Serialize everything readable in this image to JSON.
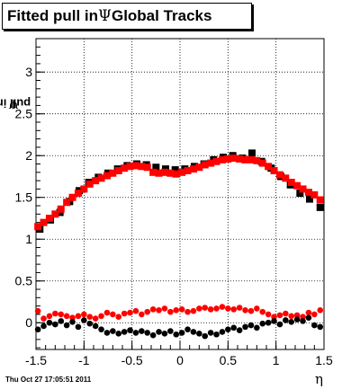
{
  "title": {
    "prefix": "Fitted pull in",
    "symbol": "Ψ",
    "suffix": "Global Tracks"
  },
  "footer_timestamp": "Thu Oct 27 17:05:51 2011",
  "chart_data": {
    "type": "scatter",
    "xlabel": "η",
    "ylabel": {
      "prefix": "pull in",
      "symbol": "Ψ"
    },
    "xlim": [
      -1.5,
      1.5
    ],
    "ylim": [
      -0.32,
      3.4
    ],
    "grid": true,
    "x_ticks": [
      "-1.5",
      "-1",
      "-0.5",
      "0",
      "0.5",
      "1",
      "1.5"
    ],
    "x_tick_values": [
      -1.5,
      -1,
      -0.5,
      0,
      0.5,
      1,
      1.5
    ],
    "y_ticks": [
      "0",
      "0.5",
      "1",
      "1.5",
      "2",
      "2.5",
      "3"
    ],
    "y_tick_values": [
      0,
      0.5,
      1,
      1.5,
      2,
      2.5,
      3
    ],
    "series_colors": [
      "#000000",
      "#ff0000",
      "#ff0000",
      "#000000"
    ],
    "series": [
      {
        "marker": "square",
        "color": "#000000",
        "x": [
          -1.46,
          -1.35,
          -1.25,
          -1.15,
          -1.05,
          -0.95,
          -0.85,
          -0.75,
          -0.65,
          -0.55,
          -0.45,
          -0.35,
          -0.25,
          -0.15,
          -0.05,
          0.05,
          0.15,
          0.25,
          0.35,
          0.45,
          0.55,
          0.65,
          0.75,
          0.85,
          0.95,
          1.05,
          1.15,
          1.25,
          1.35,
          1.46
        ],
        "y": [
          1.12,
          1.23,
          1.32,
          1.45,
          1.58,
          1.68,
          1.74,
          1.79,
          1.84,
          1.88,
          1.9,
          1.89,
          1.86,
          1.84,
          1.83,
          1.84,
          1.87,
          1.9,
          1.95,
          1.98,
          2.0,
          1.97,
          2.03,
          1.93,
          1.85,
          1.75,
          1.65,
          1.55,
          1.48,
          1.38
        ]
      },
      {
        "marker": "square",
        "color": "#ff0000",
        "x": [
          -1.48,
          -1.42,
          -1.36,
          -1.3,
          -1.24,
          -1.18,
          -1.12,
          -1.06,
          -1.0,
          -0.94,
          -0.88,
          -0.82,
          -0.76,
          -0.7,
          -0.64,
          -0.58,
          -0.52,
          -0.46,
          -0.4,
          -0.34,
          -0.28,
          -0.22,
          -0.16,
          -0.1,
          -0.04,
          0.02,
          0.08,
          0.14,
          0.2,
          0.26,
          0.32,
          0.38,
          0.44,
          0.5,
          0.56,
          0.62,
          0.68,
          0.74,
          0.8,
          0.86,
          0.92,
          0.98,
          1.04,
          1.1,
          1.16,
          1.22,
          1.28,
          1.34,
          1.4,
          1.46
        ],
        "y": [
          1.15,
          1.2,
          1.25,
          1.3,
          1.36,
          1.44,
          1.5,
          1.55,
          1.6,
          1.66,
          1.7,
          1.73,
          1.76,
          1.79,
          1.82,
          1.85,
          1.87,
          1.88,
          1.87,
          1.86,
          1.8,
          1.79,
          1.8,
          1.79,
          1.78,
          1.8,
          1.82,
          1.84,
          1.86,
          1.89,
          1.91,
          1.93,
          1.95,
          1.96,
          1.97,
          1.96,
          1.95,
          1.95,
          1.94,
          1.91,
          1.87,
          1.82,
          1.77,
          1.73,
          1.68,
          1.64,
          1.6,
          1.56,
          1.53,
          1.47
        ]
      },
      {
        "marker": "dot",
        "color": "#ff0000",
        "x": [
          -1.48,
          -1.42,
          -1.36,
          -1.3,
          -1.24,
          -1.18,
          -1.12,
          -1.06,
          -1.0,
          -0.94,
          -0.88,
          -0.82,
          -0.76,
          -0.7,
          -0.64,
          -0.58,
          -0.52,
          -0.46,
          -0.4,
          -0.34,
          -0.28,
          -0.22,
          -0.16,
          -0.1,
          -0.04,
          0.02,
          0.08,
          0.14,
          0.2,
          0.26,
          0.32,
          0.38,
          0.44,
          0.5,
          0.56,
          0.62,
          0.68,
          0.74,
          0.8,
          0.86,
          0.92,
          0.98,
          1.04,
          1.1,
          1.16,
          1.22,
          1.28,
          1.34,
          1.4,
          1.46
        ],
        "y": [
          0.14,
          0.05,
          0.08,
          0.11,
          0.1,
          0.08,
          0.06,
          0.08,
          0.1,
          0.07,
          0.05,
          0.08,
          0.12,
          0.1,
          0.07,
          0.11,
          0.12,
          0.14,
          0.1,
          0.13,
          0.16,
          0.15,
          0.17,
          0.13,
          0.15,
          0.16,
          0.13,
          0.14,
          0.17,
          0.18,
          0.16,
          0.17,
          0.19,
          0.17,
          0.16,
          0.18,
          0.15,
          0.14,
          0.17,
          0.13,
          0.1,
          0.07,
          0.09,
          0.11,
          0.08,
          0.09,
          0.07,
          0.12,
          0.1,
          0.15
        ]
      },
      {
        "marker": "dot",
        "color": "#000000",
        "x": [
          -1.48,
          -1.42,
          -1.36,
          -1.3,
          -1.24,
          -1.18,
          -1.12,
          -1.06,
          -1.0,
          -0.94,
          -0.88,
          -0.82,
          -0.76,
          -0.7,
          -0.64,
          -0.58,
          -0.52,
          -0.46,
          -0.4,
          -0.34,
          -0.28,
          -0.22,
          -0.16,
          -0.1,
          -0.04,
          0.02,
          0.08,
          0.14,
          0.2,
          0.26,
          0.32,
          0.38,
          0.44,
          0.5,
          0.56,
          0.62,
          0.68,
          0.74,
          0.8,
          0.86,
          0.92,
          0.98,
          1.04,
          1.1,
          1.16,
          1.22,
          1.28,
          1.34,
          1.4,
          1.46
        ],
        "y": [
          -0.08,
          -0.04,
          0.0,
          -0.02,
          0.02,
          -0.03,
          0.01,
          -0.05,
          0.03,
          -0.01,
          -0.04,
          -0.08,
          -0.12,
          -0.1,
          -0.13,
          -0.11,
          -0.09,
          -0.12,
          -0.1,
          -0.12,
          -0.15,
          -0.11,
          -0.13,
          -0.1,
          -0.14,
          -0.12,
          -0.08,
          -0.11,
          -0.13,
          -0.16,
          -0.12,
          -0.14,
          -0.11,
          -0.08,
          -0.06,
          -0.09,
          -0.05,
          -0.03,
          -0.06,
          -0.01,
          0.0,
          0.02,
          -0.02,
          0.03,
          0.01,
          0.04,
          0.02,
          0.06,
          -0.03,
          -0.05
        ]
      }
    ]
  }
}
